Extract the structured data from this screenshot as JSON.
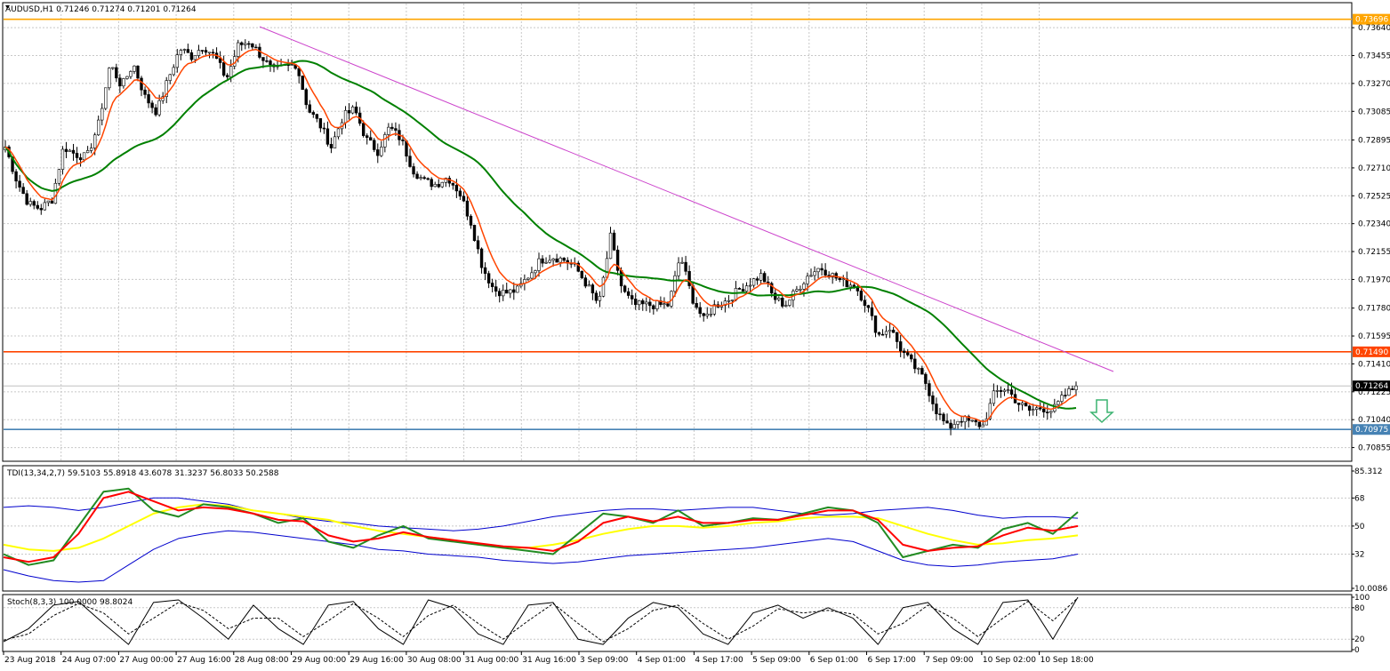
{
  "symbol_header": "AUDUSD,H1  0.71246 0.71274 0.71201 0.71264",
  "tdi_header": "TDI(13,34,2,7) 59.5103 55.8918 43.6078 31.3237 56.8033 50.2588",
  "stoch_header": "Stoch(8,3,3) 100.0000 98.8024",
  "colors": {
    "bull_candle": "#000000",
    "bear_candle": "#000000",
    "ema_fast": "#ff4500",
    "ma_slow": "#008000",
    "trendline": "#cc44cc",
    "resistance_top": "#ffa500",
    "resistance_mid": "#ff4500",
    "support": "#4682b4",
    "tdi_upper_lower_band": "#0000cd",
    "tdi_price_line": "#228b22",
    "tdi_signal_line": "#ff0000",
    "tdi_market_base": "#ffff00",
    "stoch_main": "#000000",
    "arrow": "#3cb371"
  },
  "chart_data": [
    {
      "type": "candlestick",
      "name": "main",
      "ylim": [
        0.7077,
        0.738
      ],
      "y_ticks": [
        "0.73640",
        "0.73455",
        "0.73270",
        "0.73085",
        "0.72895",
        "0.72710",
        "0.72525",
        "0.72340",
        "0.72155",
        "0.71970",
        "0.71780",
        "0.71595",
        "0.71410",
        "0.71225",
        "0.71040",
        "0.70855"
      ],
      "price_labels": [
        {
          "value": "0.73696",
          "role": "resistance_top"
        },
        {
          "value": "0.71490",
          "role": "resistance_mid"
        },
        {
          "value": "0.71264",
          "role": "current"
        },
        {
          "value": "0.70975",
          "role": "support"
        }
      ],
      "x_labels": [
        "23 Aug 2018",
        "24 Aug 07:00",
        "27 Aug 00:00",
        "27 Aug 16:00",
        "28 Aug 08:00",
        "29 Aug 00:00",
        "29 Aug 16:00",
        "30 Aug 08:00",
        "31 Aug 00:00",
        "31 Aug 16:00",
        "3 Sep 09:00",
        "4 Sep 01:00",
        "4 Sep 17:00",
        "5 Sep 09:00",
        "6 Sep 01:00",
        "6 Sep 17:00",
        "7 Sep 09:00",
        "10 Sep 02:00",
        "10 Sep 18:00"
      ],
      "close_path": [
        0.7285,
        0.7262,
        0.7247,
        0.7244,
        0.725,
        0.7285,
        0.728,
        0.7278,
        0.73,
        0.734,
        0.7325,
        0.734,
        0.7318,
        0.7308,
        0.733,
        0.735,
        0.7345,
        0.7352,
        0.7345,
        0.733,
        0.7352,
        0.7355,
        0.7345,
        0.7335,
        0.7338,
        0.734,
        0.731,
        0.73,
        0.7285,
        0.7305,
        0.731,
        0.729,
        0.7282,
        0.7298,
        0.729,
        0.727,
        0.7262,
        0.726,
        0.7265,
        0.7255,
        0.7235,
        0.7205,
        0.719,
        0.7188,
        0.719,
        0.72,
        0.721,
        0.7212,
        0.721,
        0.7205,
        0.7193,
        0.718,
        0.7225,
        0.719,
        0.718,
        0.718,
        0.718,
        0.718,
        0.7213,
        0.7185,
        0.717,
        0.718,
        0.7183,
        0.719,
        0.7195,
        0.72,
        0.7185,
        0.718,
        0.719,
        0.72,
        0.7205,
        0.72,
        0.7195,
        0.7193,
        0.718,
        0.716,
        0.7165,
        0.715,
        0.714,
        0.713,
        0.711,
        0.7098,
        0.7105,
        0.7102,
        0.71,
        0.7122,
        0.7125,
        0.7115,
        0.711,
        0.7112,
        0.711,
        0.712,
        0.7126
      ]
    },
    {
      "type": "line",
      "name": "TDI",
      "ylim": [
        10.0086,
        85.312
      ],
      "y_ticks": [
        "85.312",
        "68",
        "50",
        "32",
        "10.0086"
      ],
      "series": [
        {
          "role": "volatility_band_upper",
          "values": [
            62,
            63,
            62,
            60,
            62,
            65,
            68,
            68,
            66,
            64,
            60,
            58,
            55,
            53,
            52,
            50,
            49,
            48,
            47,
            48,
            50,
            53,
            56,
            58,
            60,
            61,
            61,
            60,
            61,
            62,
            62,
            60,
            58,
            57,
            58,
            60,
            61,
            62,
            60,
            57,
            55,
            56,
            56,
            55
          ]
        },
        {
          "role": "volatility_band_lower",
          "values": [
            22,
            18,
            15,
            14,
            15,
            25,
            35,
            42,
            45,
            47,
            46,
            44,
            42,
            40,
            38,
            35,
            34,
            32,
            31,
            30,
            28,
            27,
            26,
            27,
            29,
            31,
            32,
            33,
            34,
            35,
            36,
            38,
            40,
            42,
            40,
            34,
            28,
            25,
            24,
            25,
            27,
            28,
            29,
            32
          ]
        },
        {
          "role": "market_base",
          "values": [
            38,
            35,
            34,
            36,
            42,
            50,
            58,
            62,
            64,
            63,
            60,
            58,
            56,
            54,
            50,
            47,
            45,
            43,
            41,
            38,
            36,
            36,
            38,
            41,
            45,
            48,
            50,
            50,
            49,
            50,
            52,
            53,
            55,
            56,
            56,
            55,
            50,
            45,
            41,
            38,
            39,
            41,
            42,
            44
          ]
        },
        {
          "role": "price_line",
          "values": [
            32,
            25,
            28,
            50,
            72,
            74,
            60,
            56,
            64,
            62,
            58,
            52,
            55,
            40,
            36,
            44,
            50,
            42,
            40,
            38,
            36,
            34,
            32,
            45,
            58,
            56,
            52,
            60,
            50,
            52,
            55,
            54,
            58,
            62,
            60,
            52,
            30,
            34,
            38,
            36,
            48,
            52,
            45,
            59
          ]
        },
        {
          "role": "trade_signal",
          "values": [
            30,
            27,
            30,
            45,
            68,
            72,
            66,
            60,
            62,
            61,
            58,
            54,
            53,
            44,
            40,
            42,
            46,
            43,
            41,
            39,
            37,
            36,
            34,
            40,
            52,
            56,
            53,
            56,
            52,
            52,
            54,
            54,
            57,
            60,
            60,
            54,
            38,
            34,
            36,
            37,
            44,
            49,
            47,
            50
          ]
        }
      ]
    },
    {
      "type": "line",
      "name": "Stoch",
      "ylim": [
        0,
        100
      ],
      "y_ticks": [
        "100",
        "80",
        "20",
        "0"
      ],
      "series": [
        {
          "role": "main",
          "values": [
            15,
            40,
            85,
            92,
            50,
            10,
            90,
            95,
            60,
            20,
            85,
            40,
            10,
            85,
            92,
            40,
            10,
            95,
            80,
            30,
            10,
            85,
            90,
            20,
            10,
            60,
            90,
            80,
            30,
            10,
            70,
            85,
            60,
            80,
            60,
            10,
            80,
            90,
            40,
            10,
            90,
            95,
            20,
            100
          ]
        },
        {
          "role": "signal",
          "values": [
            18,
            30,
            65,
            88,
            70,
            30,
            60,
            90,
            75,
            40,
            60,
            60,
            25,
            55,
            88,
            60,
            25,
            65,
            85,
            50,
            20,
            55,
            88,
            50,
            15,
            40,
            75,
            85,
            50,
            20,
            45,
            78,
            70,
            75,
            68,
            30,
            50,
            85,
            60,
            25,
            60,
            92,
            55,
            98.8
          ]
        }
      ]
    }
  ]
}
